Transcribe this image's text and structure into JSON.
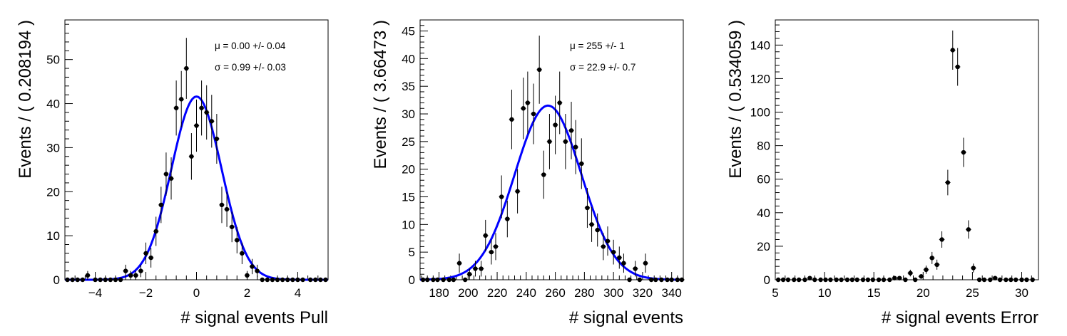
{
  "chart_data": [
    {
      "type": "scatter",
      "xlabel": "# signal events Pull",
      "ylabel": "Events / ( 0.208194 )",
      "xlim": [
        -5.2,
        5.2
      ],
      "ylim": [
        0,
        59
      ],
      "xticks": [
        -4,
        -2,
        0,
        2,
        4
      ],
      "yticks": [
        0,
        10,
        20,
        30,
        40,
        50
      ],
      "x_tick_labels": [
        "−4",
        "−2",
        "0",
        "2",
        "4"
      ],
      "y_tick_labels": [
        "0",
        "10",
        "20",
        "30",
        "40",
        "50"
      ],
      "stats": [
        "μ =  0.00 +/- 0.04",
        "σ =  0.99 +/- 0.03"
      ],
      "fit": {
        "type": "gaussian",
        "mean": 0.0,
        "sigma": 0.99,
        "peak": 41.6,
        "color": "#0000ff"
      },
      "series": [
        {
          "type": "errorbar",
          "x": [
            -5.1,
            -4.9,
            -4.7,
            -4.5,
            -4.3,
            -4.0,
            -3.8,
            -3.6,
            -3.4,
            -3.2,
            -3.0,
            -2.8,
            -2.6,
            -2.4,
            -2.2,
            -2.0,
            -1.8,
            -1.6,
            -1.4,
            -1.2,
            -1.0,
            -0.8,
            -0.6,
            -0.4,
            -0.2,
            0.0,
            0.2,
            0.4,
            0.6,
            0.8,
            1.0,
            1.2,
            1.4,
            1.6,
            1.8,
            2.0,
            2.2,
            2.4,
            2.6,
            2.8,
            3.0,
            3.2,
            3.4,
            3.6,
            3.8,
            4.0,
            4.2,
            4.5,
            4.7,
            4.9,
            5.1
          ],
          "y": [
            0,
            0,
            0,
            0,
            1,
            0,
            0,
            0,
            0,
            0,
            0,
            2,
            1,
            1,
            2,
            6,
            5,
            11,
            17,
            24,
            23,
            39,
            41,
            48,
            28,
            35,
            39,
            38,
            36,
            32,
            17,
            16,
            12,
            9,
            6,
            1,
            3,
            2,
            0,
            0,
            0,
            0,
            0,
            0,
            0,
            0,
            0,
            0,
            0,
            0,
            0
          ],
          "color": "#000000"
        }
      ]
    },
    {
      "type": "scatter",
      "xlabel": "# signal events",
      "ylabel": "Events / ( 3.66473 )",
      "xlim": [
        167,
        348
      ],
      "ylim": [
        0,
        47
      ],
      "xticks": [
        180,
        200,
        220,
        240,
        260,
        280,
        300,
        320,
        340
      ],
      "yticks": [
        0,
        5,
        10,
        15,
        20,
        25,
        30,
        35,
        40,
        45
      ],
      "x_tick_labels": [
        "180",
        "200",
        "220",
        "240",
        "260",
        "280",
        "300",
        "320",
        "340"
      ],
      "y_tick_labels": [
        "0",
        "5",
        "10",
        "15",
        "20",
        "25",
        "30",
        "35",
        "40",
        "45"
      ],
      "stats": [
        "μ =  255 +/- 1",
        "σ =  22.9 +/- 0.7"
      ],
      "fit": {
        "type": "gaussian",
        "mean": 255,
        "sigma": 22.9,
        "peak": 31.5,
        "color": "#0000ff"
      },
      "series": [
        {
          "type": "errorbar",
          "x": [
            169,
            172,
            176,
            179,
            183,
            187,
            190,
            194,
            198,
            201,
            205,
            209,
            212,
            216,
            219,
            223,
            227,
            230,
            234,
            238,
            241,
            245,
            249,
            252,
            256,
            260,
            263,
            267,
            271,
            274,
            278,
            282,
            285,
            289,
            293,
            296,
            300,
            304,
            307,
            311,
            315,
            318,
            322,
            326,
            329,
            333,
            337,
            340,
            344,
            347
          ],
          "y": [
            0,
            0,
            0,
            0,
            0,
            0,
            0,
            3,
            0,
            1,
            2,
            2,
            8,
            5,
            6,
            15,
            11,
            29,
            16,
            31,
            32,
            30,
            38,
            19,
            25,
            28,
            32,
            25,
            27,
            24,
            21,
            13,
            10,
            9,
            6,
            7,
            5,
            4,
            3,
            0,
            2,
            0,
            3,
            0,
            0,
            0,
            0,
            0,
            0,
            0
          ],
          "color": "#000000"
        }
      ]
    },
    {
      "type": "scatter",
      "xlabel": "# signal events Error",
      "ylabel": "Events / ( 0.534059 )",
      "xlim": [
        5,
        31.7
      ],
      "ylim": [
        0,
        155
      ],
      "xticks": [
        5,
        10,
        15,
        20,
        25,
        30
      ],
      "yticks": [
        0,
        20,
        40,
        60,
        80,
        100,
        120,
        140
      ],
      "x_tick_labels": [
        "5",
        "10",
        "15",
        "20",
        "25",
        "30"
      ],
      "y_tick_labels": [
        "0",
        "20",
        "40",
        "60",
        "80",
        "100",
        "120",
        "140"
      ],
      "series": [
        {
          "type": "errorbar",
          "x": [
            5.3,
            5.8,
            6.3,
            6.9,
            7.4,
            8.0,
            8.5,
            9.0,
            9.6,
            10.1,
            10.6,
            11.2,
            11.7,
            12.3,
            12.8,
            13.3,
            13.9,
            14.4,
            14.9,
            15.5,
            16.0,
            16.6,
            17.1,
            17.6,
            18.2,
            18.7,
            19.2,
            19.8,
            20.3,
            20.9,
            21.4,
            21.9,
            22.5,
            23.0,
            23.5,
            24.1,
            24.6,
            25.1,
            25.7,
            26.2,
            26.8,
            27.3,
            27.8,
            28.4,
            28.9,
            29.4,
            30.0,
            30.5,
            31.1
          ],
          "y": [
            0,
            0,
            0,
            0,
            0,
            0,
            1,
            0,
            0,
            0,
            0,
            0,
            0,
            0,
            0,
            0,
            0,
            0,
            0,
            0,
            0,
            0,
            1,
            1,
            0,
            4,
            0,
            2,
            6,
            13,
            9,
            24,
            58,
            137,
            127,
            76,
            30,
            7,
            0,
            0,
            0,
            1,
            0,
            0,
            0,
            0,
            0,
            0,
            0
          ],
          "color": "#000000"
        }
      ]
    }
  ]
}
